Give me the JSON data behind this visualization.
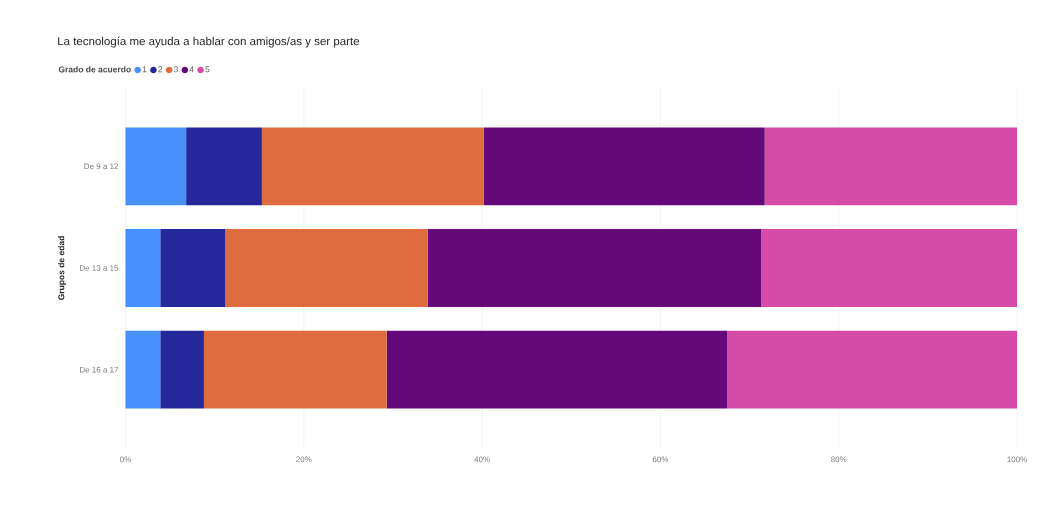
{
  "chart_data": {
    "type": "bar",
    "orientation": "horizontal",
    "stacked": true,
    "title": "La tecnología me ayuda a hablar con amigos/as y ser parte",
    "ylabel": "Grupos de edad",
    "legend_title": "Grado de acuerdo",
    "legend": "top left",
    "grid": "x",
    "categories": [
      "De 9 a 12",
      "De 13 a 15",
      "De 16 a 17"
    ],
    "series": [
      {
        "name": "1",
        "color": "#4590fa",
        "values": [
          6.8,
          3.9,
          3.9
        ]
      },
      {
        "name": "2",
        "color": "#25289b",
        "values": [
          8.5,
          7.3,
          4.9
        ]
      },
      {
        "name": "3",
        "color": "#de6c3f",
        "values": [
          24.9,
          22.7,
          20.5
        ]
      },
      {
        "name": "4",
        "color": "#65087a",
        "values": [
          31.5,
          37.4,
          38.2
        ]
      },
      {
        "name": "5",
        "color": "#d74ba8",
        "values": [
          28.3,
          28.7,
          32.5
        ]
      }
    ],
    "xlim": [
      0,
      100
    ],
    "xticks": [
      {
        "value": 0,
        "label": "0%"
      },
      {
        "value": 20,
        "label": "20%"
      },
      {
        "value": 40,
        "label": "40%"
      },
      {
        "value": 60,
        "label": "60%"
      },
      {
        "value": 80,
        "label": "80%"
      },
      {
        "value": 100,
        "label": "100%"
      }
    ]
  }
}
